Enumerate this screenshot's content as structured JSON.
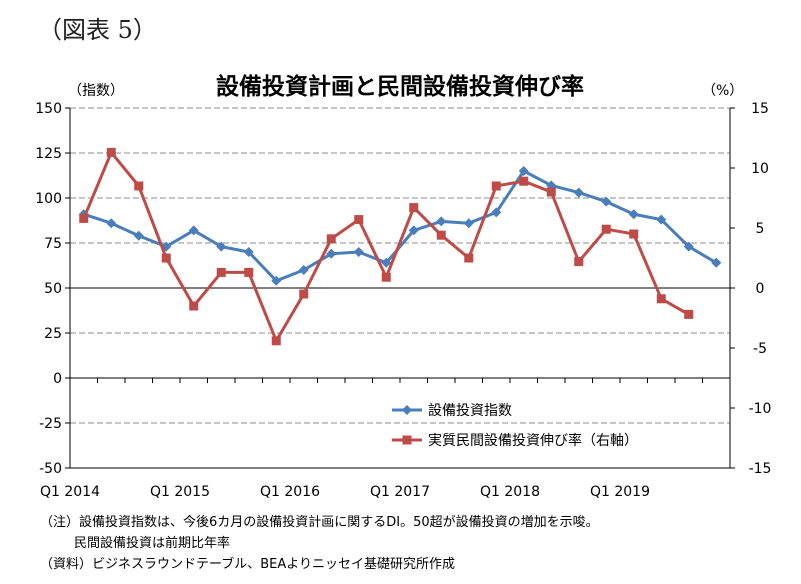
{
  "figure_label": "（図表 5）",
  "chart_data": {
    "type": "line",
    "title": "設備投資計画と民間設備投資伸び率",
    "ylabel_left": "（指数）",
    "ylabel_right": "（%）",
    "ylim_left": [
      -50,
      150
    ],
    "yticks_left": [
      "150",
      "125",
      "100",
      "75",
      "50",
      "25",
      "0",
      "-25",
      "-50"
    ],
    "ylim_right": [
      -15,
      15
    ],
    "yticks_right": [
      "15",
      "10",
      "5",
      "0",
      "-5",
      "-10",
      "-15"
    ],
    "xtick_labels": [
      "Q1 2014",
      "Q1 2015",
      "Q1 2016",
      "Q1 2017",
      "Q1 2018",
      "Q1 2019"
    ],
    "categories": [
      "Q1 2014",
      "Q2 2014",
      "Q3 2014",
      "Q4 2014",
      "Q1 2015",
      "Q2 2015",
      "Q3 2015",
      "Q4 2015",
      "Q1 2016",
      "Q2 2016",
      "Q3 2016",
      "Q4 2016",
      "Q1 2017",
      "Q2 2017",
      "Q3 2017",
      "Q4 2017",
      "Q1 2018",
      "Q2 2018",
      "Q3 2018",
      "Q4 2018",
      "Q1 2019",
      "Q2 2019",
      "Q3 2019",
      "Q4 2019"
    ],
    "grid": "horizontal dashed",
    "legend_position": "bottom-right",
    "series": [
      {
        "name": "設備投資指数",
        "axis": "left",
        "color": "#4a7ebb",
        "marker": "diamond",
        "values": [
          91,
          86,
          79,
          73,
          82,
          73,
          70,
          54,
          60,
          69,
          70,
          64,
          82,
          87,
          86,
          92,
          115,
          107,
          103,
          98,
          91,
          88,
          73,
          64
        ]
      },
      {
        "name": "実質民間設備投資伸び率（右軸）",
        "axis": "right",
        "color": "#be4b48",
        "marker": "square",
        "values": [
          5.8,
          11.3,
          8.5,
          2.5,
          -1.5,
          1.3,
          1.3,
          -4.4,
          -0.5,
          4.1,
          5.7,
          0.9,
          6.7,
          4.4,
          2.5,
          8.5,
          8.9,
          8.0,
          2.2,
          4.9,
          4.5,
          -0.9,
          -2.2,
          null
        ]
      }
    ]
  },
  "notes": {
    "line1": "（注）設備投資指数は、今後6カ月の設備投資計画に関するDI。50超が設備投資の増加を示唆。",
    "line2": "民間設備投資は前期比年率",
    "line3": "（資料）ビジネスラウンドテーブル、BEAよりニッセイ基礎研究所作成"
  }
}
